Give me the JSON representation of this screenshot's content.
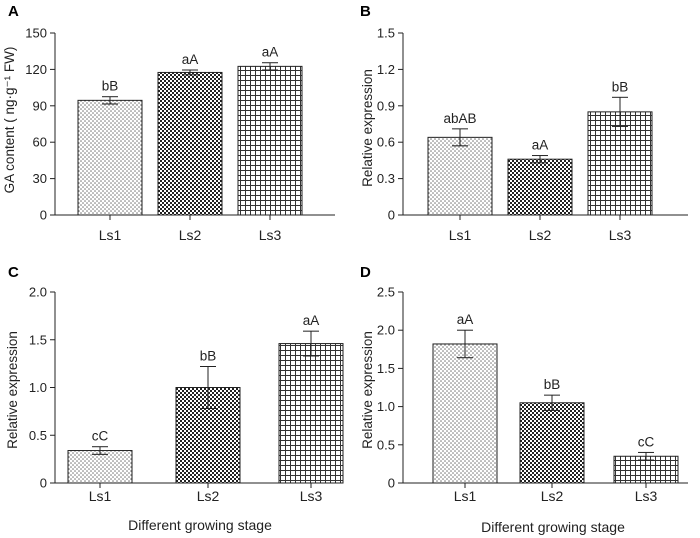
{
  "figure": {
    "xlabel_bottom": "Different growing stage"
  },
  "chart_data": [
    {
      "panel": "A",
      "type": "bar",
      "categories": [
        "Ls1",
        "Ls2",
        "Ls3"
      ],
      "values": [
        94.5,
        117.5,
        122.5
      ],
      "errors": [
        3,
        2,
        3
      ],
      "labels": [
        "bB",
        "aA",
        "aA"
      ],
      "ylabel": "GA content ( ng·g⁻¹ FW)",
      "ylim": [
        0,
        150
      ],
      "yticks": [
        "0",
        "30",
        "60",
        "90",
        "120",
        "150"
      ]
    },
    {
      "panel": "B",
      "type": "bar",
      "categories": [
        "Ls1",
        "Ls2",
        "Ls3"
      ],
      "values": [
        0.64,
        0.46,
        0.85
      ],
      "errors": [
        0.07,
        0.03,
        0.12
      ],
      "labels": [
        "abAB",
        "aA",
        "bB"
      ],
      "ylabel": "Relative expression",
      "ylim": [
        0,
        1.5
      ],
      "yticks": [
        "0",
        "0.3",
        "0.6",
        "0.9",
        "1.2",
        "1.5"
      ]
    },
    {
      "panel": "C",
      "type": "bar",
      "categories": [
        "Ls1",
        "Ls2",
        "Ls3"
      ],
      "values": [
        0.34,
        1.0,
        1.46
      ],
      "errors": [
        0.04,
        0.22,
        0.13
      ],
      "labels": [
        "cC",
        "bB",
        "aA"
      ],
      "ylabel": "Relative expression",
      "ylim": [
        0,
        2.0
      ],
      "yticks": [
        "0",
        "0.5",
        "1.0",
        "1.5",
        "2.0"
      ]
    },
    {
      "panel": "D",
      "type": "bar",
      "categories": [
        "Ls1",
        "Ls2",
        "Ls3"
      ],
      "values": [
        1.82,
        1.05,
        0.35
      ],
      "errors": [
        0.18,
        0.1,
        0.05
      ],
      "labels": [
        "aA",
        "bB",
        "cC"
      ],
      "ylabel": "Relative expression",
      "ylim": [
        0,
        2.5
      ],
      "yticks": [
        "0",
        "0.5",
        "1.0",
        "1.5",
        "2.0",
        "2.5"
      ]
    }
  ]
}
